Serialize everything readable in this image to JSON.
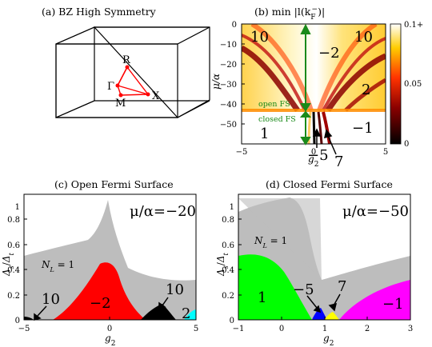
{
  "panel_a": {
    "title": "(a) BZ High Symmetry",
    "points": [
      "R",
      "Γ",
      "X",
      "M"
    ]
  },
  "panel_b": {
    "title": "(b) min |l(k",
    "title_sub": "F",
    "title_sup": "−",
    "title_end": ")|",
    "ylabel": "μ/α",
    "xlabel": "g",
    "xlabel_sub": "2",
    "xticks": [
      "−5",
      "0",
      "5"
    ],
    "yticks": [
      "0",
      "−10",
      "−20",
      "−30",
      "−40",
      "−50"
    ],
    "colorbar_ticks": [
      "0.1+",
      "0.05",
      "0"
    ],
    "region_labels": [
      "10",
      "10",
      "−2",
      "2",
      "1",
      "−1",
      "−5",
      "7"
    ],
    "open_fs": "open FS",
    "closed_fs": "closed FS"
  },
  "panel_c": {
    "title": "(c) Open Fermi Surface",
    "note": "μ/α=−20",
    "ylabel": "Δ",
    "ylabel_sub_s": "s",
    "ylabel_sub_t": "t",
    "xlabel": "g",
    "xlabel_sub": "2",
    "nl_label": "N",
    "nl_sub": "L",
    "nl_value": " = 1",
    "xticks": [
      "−5",
      "0",
      "5"
    ],
    "yticks": [
      "0",
      "0.2",
      "0.4",
      "0.6",
      "0.8",
      "1"
    ],
    "region_labels": [
      "10",
      "−2",
      "10",
      "2"
    ],
    "colors": {
      "gray": "#bdbdbd",
      "red": "#ff0000",
      "black": "#000000",
      "cyan": "#00ffff"
    }
  },
  "panel_d": {
    "title": "(d) Closed Fermi Surface",
    "note": "μ/α=−50",
    "ylabel": "Δ",
    "ylabel_sub_s": "s",
    "ylabel_sub_t": "t",
    "xlabel": "g",
    "xlabel_sub": "2",
    "nl_label": "N",
    "nl_sub": "L",
    "nl_value": " = 1",
    "xticks": [
      "−1",
      "0",
      "1",
      "2",
      "3"
    ],
    "yticks": [
      "0",
      "0.2",
      "0.4",
      "0.6",
      "0.8",
      "1"
    ],
    "region_labels": [
      "1",
      "−5",
      "7",
      "−1"
    ],
    "colors": {
      "gray": "#bdbdbd",
      "green": "#00ff00",
      "blue": "#0000ff",
      "yellow": "#ffff00",
      "magenta": "#ff00ff"
    }
  }
}
